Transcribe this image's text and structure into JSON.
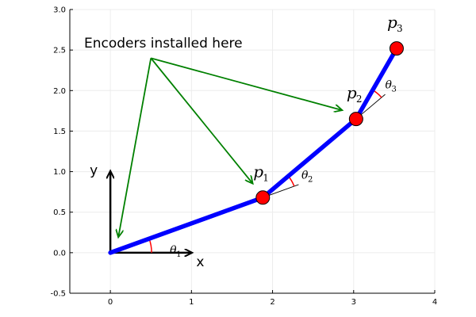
{
  "chart_data": {
    "type": "diagram",
    "xlim": [
      -0.5,
      4
    ],
    "ylim": [
      -0.5,
      3.0
    ],
    "xticks": [
      0,
      1,
      2,
      3,
      4
    ],
    "yticks": [
      -0.5,
      0.0,
      0.5,
      1.0,
      1.5,
      2.0,
      2.5,
      3.0
    ],
    "xtick_labels": [
      "0",
      "1",
      "2",
      "3",
      "4"
    ],
    "ytick_labels": [
      "-0.5",
      "0.0",
      "0.5",
      "1.0",
      "1.5",
      "2.0",
      "2.5",
      "3.0"
    ],
    "grid": true,
    "arm": {
      "color": "#0000ff",
      "joint_color": "#ff0000",
      "points": [
        {
          "x": 0,
          "y": 0
        },
        {
          "x": 1.88,
          "y": 0.68
        },
        {
          "x": 3.03,
          "y": 1.65
        },
        {
          "x": 3.53,
          "y": 2.52
        }
      ]
    },
    "joint_labels": [
      {
        "base": "p",
        "sub": "1"
      },
      {
        "base": "p",
        "sub": "2"
      },
      {
        "base": "p",
        "sub": "3"
      }
    ],
    "angle_labels": [
      {
        "base": "θ",
        "sub": "1"
      },
      {
        "base": "θ",
        "sub": "2"
      },
      {
        "base": "θ",
        "sub": "3"
      }
    ],
    "frame": {
      "x_label": "x",
      "y_label": "y",
      "x_len": 1.0,
      "y_len": 1.0
    },
    "annotation": {
      "text": "Encoders installed here",
      "color": "#008000",
      "origin": {
        "x": 0.5,
        "y": 2.4
      },
      "targets": [
        {
          "x": 0.1,
          "y": 0.2
        },
        {
          "x": 1.75,
          "y": 0.86
        },
        {
          "x": 2.85,
          "y": 1.76
        }
      ]
    }
  }
}
